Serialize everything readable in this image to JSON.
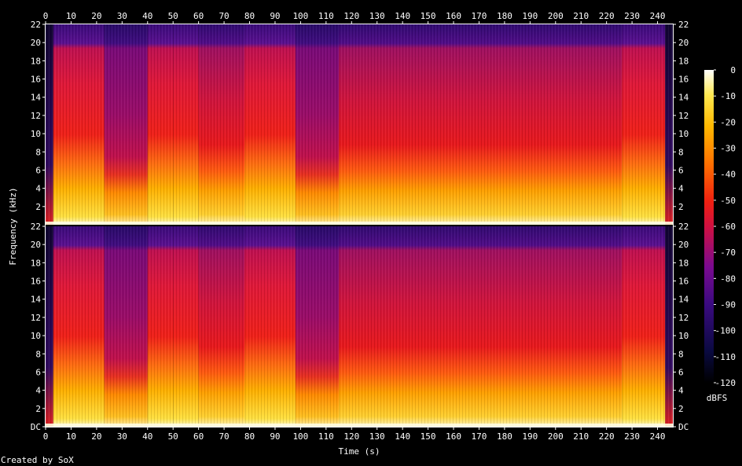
{
  "chart_data": {
    "type": "heatmap",
    "title": "",
    "xlabel": "Time (s)",
    "ylabel": "Frequency (kHz)",
    "xlim": [
      0,
      246
    ],
    "ylim": [
      0,
      22
    ],
    "x_ticks": [
      "0",
      "10",
      "20",
      "30",
      "40",
      "50",
      "60",
      "70",
      "80",
      "90",
      "100",
      "110",
      "120",
      "130",
      "140",
      "150",
      "160",
      "170",
      "180",
      "190",
      "200",
      "210",
      "220",
      "230",
      "240"
    ],
    "y_ticks_left": [
      "DC",
      "2",
      "4",
      "6",
      "8",
      "10",
      "12",
      "14",
      "16",
      "18",
      "20",
      "22"
    ],
    "y_ticks_right": [
      "DC",
      "2",
      "4",
      "6",
      "8",
      "10",
      "12",
      "14",
      "16",
      "18",
      "20",
      "22"
    ],
    "channels": 2,
    "colorbar": {
      "label": "dBFS",
      "range": [
        -120,
        0
      ],
      "ticks": [
        "0",
        "-10",
        "-20",
        "-30",
        "-40",
        "-50",
        "-60",
        "-70",
        "-80",
        "-90",
        "-100",
        "-110",
        "-120"
      ]
    },
    "segments_s": [
      {
        "start": 0,
        "end": 3,
        "cutoff_khz": 20,
        "level": "silence"
      },
      {
        "start": 3,
        "end": 23,
        "cutoff_khz": 20,
        "level": "loud"
      },
      {
        "start": 23,
        "end": 40,
        "cutoff_khz": 20,
        "level": "quiet"
      },
      {
        "start": 40,
        "end": 50,
        "cutoff_khz": 20,
        "level": "loud"
      },
      {
        "start": 50,
        "end": 60,
        "cutoff_khz": 20,
        "level": "loud"
      },
      {
        "start": 60,
        "end": 78,
        "cutoff_khz": 20,
        "level": "medium"
      },
      {
        "start": 78,
        "end": 98,
        "cutoff_khz": 20,
        "level": "loud"
      },
      {
        "start": 98,
        "end": 115,
        "cutoff_khz": 20,
        "level": "quiet"
      },
      {
        "start": 115,
        "end": 226,
        "cutoff_khz": 20,
        "level": "medium"
      },
      {
        "start": 226,
        "end": 243,
        "cutoff_khz": 20,
        "level": "loud"
      },
      {
        "start": 243,
        "end": 246,
        "cutoff_khz": 20,
        "level": "silence"
      }
    ]
  },
  "footer": {
    "credit": "Created by SoX"
  }
}
